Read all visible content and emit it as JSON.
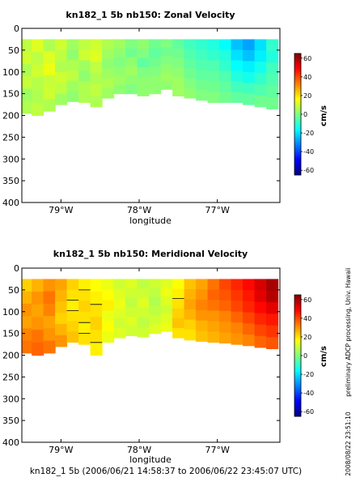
{
  "figure": {
    "footer": "kn182_1 5b (2006/06/21 14:58:37 to 2006/06/22 23:45:07 UTC)",
    "side_text": "preliminary ADCP processing,  Univ. Hawaii",
    "timestamp": "2008/08/22 23:51:10"
  },
  "chart_data": [
    {
      "type": "heatmap",
      "title": "kn182_1 5b nb150: Zonal Velocity",
      "xlabel": "longitude",
      "ylabel": "",
      "x_ticks": [
        "79°W",
        "78°W",
        "77°W"
      ],
      "x_tick_values": [
        -79,
        -78,
        -77
      ],
      "xlim": [
        -79.5,
        -76.2
      ],
      "y_ticks": [
        0,
        50,
        100,
        150,
        200,
        250,
        300,
        350,
        400
      ],
      "ylim": [
        400,
        0
      ],
      "colorbar": {
        "label": "cm/s",
        "ticks": [
          60,
          40,
          20,
          0,
          -20,
          -40,
          -60
        ],
        "range": [
          -65,
          65
        ]
      },
      "data_depth_range": [
        25,
        210
      ],
      "columns": [
        {
          "lon": -79.45,
          "top": 25,
          "bottom": 195,
          "profile": [
            8,
            10,
            6,
            9,
            4,
            6
          ]
        },
        {
          "lon": -79.3,
          "top": 25,
          "bottom": 200,
          "profile": [
            12,
            8,
            10,
            7,
            6,
            8
          ]
        },
        {
          "lon": -79.15,
          "top": 25,
          "bottom": 190,
          "profile": [
            6,
            12,
            14,
            9,
            10,
            6
          ]
        },
        {
          "lon": -79.0,
          "top": 25,
          "bottom": 175,
          "profile": [
            10,
            8,
            6,
            10,
            8,
            4
          ]
        },
        {
          "lon": -78.85,
          "top": 25,
          "bottom": 168,
          "profile": [
            4,
            2,
            6,
            8,
            4,
            2
          ]
        },
        {
          "lon": -78.7,
          "top": 25,
          "bottom": 170,
          "profile": [
            8,
            10,
            4,
            2,
            6,
            6
          ]
        },
        {
          "lon": -78.55,
          "top": 25,
          "bottom": 180,
          "profile": [
            10,
            12,
            8,
            6,
            8,
            6
          ]
        },
        {
          "lon": -78.4,
          "top": 25,
          "bottom": 160,
          "profile": [
            6,
            4,
            2,
            4,
            6,
            4
          ]
        },
        {
          "lon": -78.25,
          "top": 25,
          "bottom": 150,
          "profile": [
            4,
            2,
            0,
            2,
            4,
            2
          ]
        },
        {
          "lon": -78.1,
          "top": 25,
          "bottom": 150,
          "profile": [
            0,
            -2,
            2,
            4,
            2,
            0
          ]
        },
        {
          "lon": -77.95,
          "top": 25,
          "bottom": 155,
          "profile": [
            2,
            0,
            -4,
            0,
            2,
            2
          ]
        },
        {
          "lon": -77.8,
          "top": 25,
          "bottom": 150,
          "profile": [
            -2,
            -4,
            -2,
            0,
            2,
            2
          ]
        },
        {
          "lon": -77.65,
          "top": 25,
          "bottom": 140,
          "profile": [
            0,
            -2,
            0,
            2,
            4,
            2
          ]
        },
        {
          "lon": -77.5,
          "top": 25,
          "bottom": 155,
          "profile": [
            -4,
            -2,
            0,
            2,
            4,
            4
          ]
        },
        {
          "lon": -77.35,
          "top": 25,
          "bottom": 160,
          "profile": [
            -8,
            -6,
            -4,
            -2,
            0,
            2
          ]
        },
        {
          "lon": -77.2,
          "top": 25,
          "bottom": 165,
          "profile": [
            -10,
            -8,
            -6,
            -4,
            -2,
            0
          ]
        },
        {
          "lon": -77.05,
          "top": 25,
          "bottom": 170,
          "profile": [
            -12,
            -10,
            -6,
            -4,
            -2,
            0
          ]
        },
        {
          "lon": -76.9,
          "top": 25,
          "bottom": 170,
          "profile": [
            -16,
            -12,
            -10,
            -6,
            -4,
            -2
          ]
        },
        {
          "lon": -76.75,
          "top": 25,
          "bottom": 170,
          "profile": [
            -24,
            -20,
            -16,
            -12,
            -8,
            -4
          ]
        },
        {
          "lon": -76.6,
          "top": 25,
          "bottom": 175,
          "profile": [
            -28,
            -24,
            -18,
            -14,
            -8,
            -4
          ]
        },
        {
          "lon": -76.45,
          "top": 25,
          "bottom": 180,
          "profile": [
            -20,
            -18,
            -14,
            -10,
            -6,
            -2
          ]
        },
        {
          "lon": -76.3,
          "top": 25,
          "bottom": 185,
          "profile": [
            -10,
            -12,
            -8,
            -6,
            -4,
            -2
          ]
        }
      ]
    },
    {
      "type": "heatmap",
      "title": "kn182_1 5b nb150: Meridional Velocity",
      "xlabel": "longitude",
      "ylabel": "",
      "x_ticks": [
        "79°W",
        "78°W",
        "77°W"
      ],
      "x_tick_values": [
        -79,
        -78,
        -77
      ],
      "xlim": [
        -79.5,
        -76.2
      ],
      "y_ticks": [
        0,
        50,
        100,
        150,
        200,
        250,
        300,
        350,
        400
      ],
      "ylim": [
        400,
        0
      ],
      "colorbar": {
        "label": "cm/s",
        "ticks": [
          60,
          40,
          20,
          0,
          -20,
          -40,
          -60
        ],
        "range": [
          -65,
          65
        ]
      },
      "data_depth_range": [
        25,
        210
      ],
      "columns": [
        {
          "lon": -79.45,
          "top": 25,
          "bottom": 195,
          "profile": [
            22,
            26,
            30,
            28,
            32,
            34
          ]
        },
        {
          "lon": -79.3,
          "top": 25,
          "bottom": 200,
          "profile": [
            26,
            30,
            28,
            30,
            34,
            36
          ]
        },
        {
          "lon": -79.15,
          "top": 25,
          "bottom": 195,
          "profile": [
            30,
            34,
            32,
            28,
            30,
            34
          ]
        },
        {
          "lon": -79.0,
          "top": 25,
          "bottom": 180,
          "profile": [
            28,
            26,
            24,
            22,
            26,
            30
          ]
        },
        {
          "lon": -78.85,
          "top": 25,
          "bottom": 170,
          "profile": [
            22,
            20,
            18,
            20,
            22,
            24
          ]
        },
        {
          "lon": -78.7,
          "top": 25,
          "bottom": 175,
          "profile": [
            18,
            20,
            22,
            20,
            18,
            20
          ]
        },
        {
          "lon": -78.55,
          "top": 25,
          "bottom": 200,
          "profile": [
            16,
            18,
            20,
            22,
            20,
            18
          ]
        },
        {
          "lon": -78.4,
          "top": 25,
          "bottom": 170,
          "profile": [
            14,
            16,
            18,
            14,
            16,
            14
          ]
        },
        {
          "lon": -78.25,
          "top": 25,
          "bottom": 160,
          "profile": [
            10,
            12,
            14,
            12,
            10,
            12
          ]
        },
        {
          "lon": -78.1,
          "top": 25,
          "bottom": 155,
          "profile": [
            12,
            10,
            8,
            10,
            12,
            10
          ]
        },
        {
          "lon": -77.95,
          "top": 25,
          "bottom": 158,
          "profile": [
            8,
            10,
            12,
            10,
            8,
            10
          ]
        },
        {
          "lon": -77.8,
          "top": 25,
          "bottom": 150,
          "profile": [
            10,
            8,
            6,
            8,
            10,
            12
          ]
        },
        {
          "lon": -77.65,
          "top": 25,
          "bottom": 145,
          "profile": [
            12,
            14,
            12,
            10,
            12,
            14
          ]
        },
        {
          "lon": -77.5,
          "top": 25,
          "bottom": 160,
          "profile": [
            16,
            18,
            20,
            22,
            24,
            20
          ]
        },
        {
          "lon": -77.35,
          "top": 25,
          "bottom": 165,
          "profile": [
            24,
            26,
            28,
            26,
            22,
            20
          ]
        },
        {
          "lon": -77.2,
          "top": 25,
          "bottom": 168,
          "profile": [
            28,
            30,
            32,
            30,
            26,
            24
          ]
        },
        {
          "lon": -77.05,
          "top": 25,
          "bottom": 170,
          "profile": [
            34,
            36,
            34,
            30,
            28,
            26
          ]
        },
        {
          "lon": -76.9,
          "top": 25,
          "bottom": 172,
          "profile": [
            40,
            38,
            36,
            32,
            30,
            28
          ]
        },
        {
          "lon": -76.75,
          "top": 25,
          "bottom": 175,
          "profile": [
            44,
            42,
            40,
            36,
            32,
            30
          ]
        },
        {
          "lon": -76.6,
          "top": 25,
          "bottom": 178,
          "profile": [
            48,
            46,
            44,
            40,
            36,
            32
          ]
        },
        {
          "lon": -76.45,
          "top": 25,
          "bottom": 182,
          "profile": [
            54,
            52,
            48,
            44,
            40,
            36
          ]
        },
        {
          "lon": -76.3,
          "top": 25,
          "bottom": 185,
          "profile": [
            60,
            58,
            52,
            46,
            42,
            38
          ]
        }
      ]
    }
  ]
}
